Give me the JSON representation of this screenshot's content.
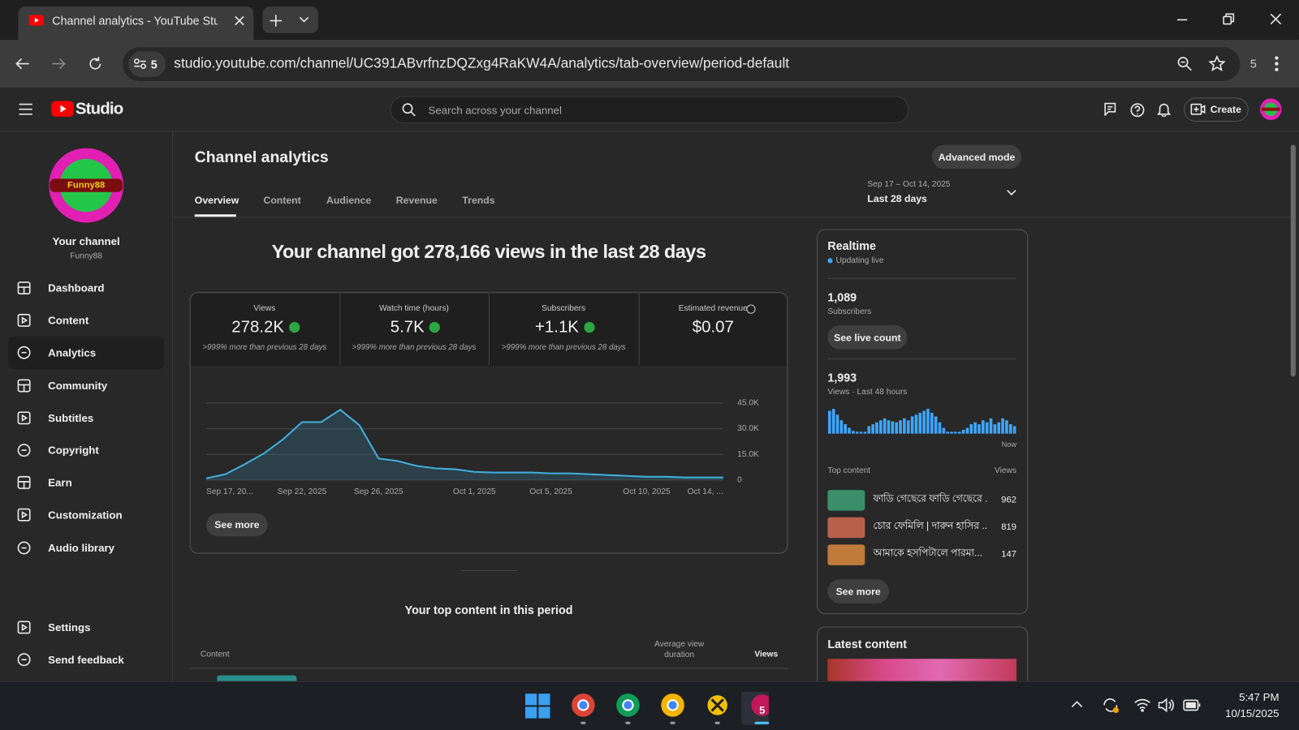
{
  "browser": {
    "tab_title": "Channel analytics - YouTube Stu",
    "url": "studio.youtube.com/channel/UC391ABvrfnzDQZxg4RaKW4A/analytics/tab-overview/period-default",
    "site_info_count": "5",
    "profile_badge": "5"
  },
  "header": {
    "logo": "Studio",
    "search": "Search across your channel",
    "create": "Create"
  },
  "sidebar": {
    "avatar_text": "Funny88",
    "channel_heading": "Your channel",
    "channel_name": "Funny88",
    "nav": [
      "Dashboard",
      "Content",
      "Analytics",
      "Community",
      "Subtitles",
      "Copyright",
      "Earn",
      "Customization",
      "Audio library"
    ],
    "footer": [
      "Settings",
      "Send feedback"
    ]
  },
  "page": {
    "title": "Channel analytics",
    "advanced_mode": "Advanced mode",
    "date_range": "Sep 17 – Oct 14, 2025",
    "period": "Last 28 days",
    "tabs": [
      "Overview",
      "Content",
      "Audience",
      "Revenue",
      "Trends"
    ]
  },
  "overview": {
    "headline": "Your channel got 278,166 views in the last 28 days",
    "metrics": [
      {
        "label": "Views",
        "value": "278.2K",
        "change": ">999% more than previous 28 days"
      },
      {
        "label": "Watch time (hours)",
        "value": "5.7K",
        "change": ">999% more than previous 28 days"
      },
      {
        "label": "Subscribers",
        "value": "+1.1K",
        "change": ">999% more than previous 28 days"
      },
      {
        "label": "Estimated revenue",
        "value": "$0.07"
      }
    ],
    "see_more": "See more",
    "top_content_title": "Your top content in this period",
    "columns": [
      "Content",
      "Average view duration",
      "Views"
    ]
  },
  "realtime": {
    "title": "Realtime",
    "status": "Updating live",
    "subscribers": "1,089",
    "subscribers_label": "Subscribers",
    "see_live_count": "See live count",
    "views": "1,993",
    "views_label": "Views · Last 48 hours",
    "now": "Now",
    "top_content_label": "Top content",
    "views_column": "Views",
    "top_content": [
      {
        "title": "ফাডি গেছেরে ফাডি গেছেরে ...",
        "views": "962"
      },
      {
        "title": "চোর ফেমিলি | দারুন হাসির ...",
        "views": "819"
      },
      {
        "title": "আমাকে হসপিটালে পারমা...",
        "views": "147"
      }
    ],
    "see_more": "See more"
  },
  "latest": {
    "title": "Latest content"
  },
  "taskbar": {
    "app_badge": "5",
    "time": "5:47 PM",
    "date": "10/15/2025"
  },
  "chart_data": [
    {
      "type": "line",
      "color": "#3fb0dc",
      "categories": [
        "Sep 17, 20...",
        null,
        null,
        null,
        null,
        "Sep 22, 2025",
        null,
        null,
        null,
        "Sep 26, 2025",
        null,
        null,
        null,
        null,
        "Oct 1, 2025",
        null,
        null,
        null,
        "Oct 5, 2025",
        null,
        null,
        null,
        null,
        "Oct 10, 2025",
        null,
        null,
        null,
        "Oct 14, ..."
      ],
      "values": [
        1000,
        3400,
        9200,
        15500,
        23700,
        33900,
        33900,
        41100,
        32000,
        12600,
        11100,
        8200,
        6800,
        6300,
        4800,
        4400,
        4400,
        4400,
        3900,
        3900,
        3400,
        2900,
        2400,
        1900,
        1900,
        1500,
        1500,
        1500
      ],
      "ylim": [
        0,
        45000
      ],
      "yticks": [
        0,
        {
          "value": 15000,
          "label": "15.0K"
        },
        {
          "value": 30000,
          "label": "30.0K"
        },
        {
          "value": 45000,
          "label": "45.0K"
        }
      ],
      "grid": true
    },
    {
      "type": "bar",
      "color": "#3ea6ff",
      "values": [
        82,
        89,
        68,
        48,
        34,
        21,
        10,
        7,
        7,
        7,
        27,
        34,
        41,
        48,
        55,
        48,
        44,
        41,
        48,
        55,
        48,
        62,
        68,
        75,
        82,
        89,
        75,
        62,
        41,
        21,
        7,
        7,
        7,
        7,
        14,
        21,
        34,
        41,
        34,
        48,
        41,
        55,
        34,
        41,
        55,
        48,
        34,
        27
      ]
    }
  ]
}
